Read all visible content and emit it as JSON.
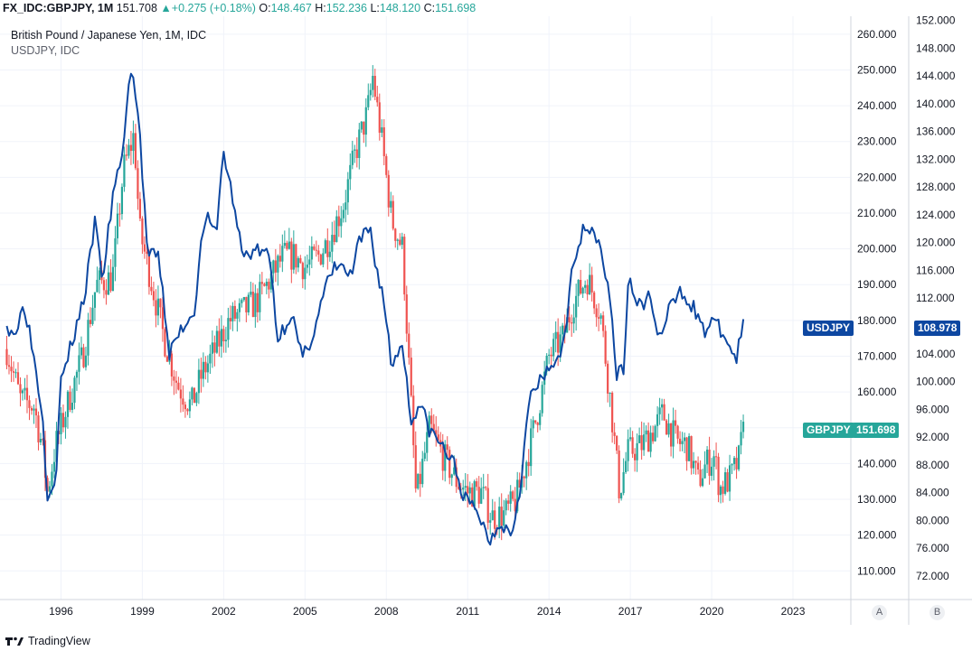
{
  "header": {
    "symbol": "FX_IDC:GBPJPY, 1M",
    "last": "151.708",
    "change": "+0.275 (+0.18%)",
    "o_label": "O:",
    "o_val": "148.467",
    "h_label": "H:",
    "h_val": "152.236",
    "l_label": "L:",
    "l_val": "148.120",
    "c_label": "C:",
    "c_val": "151.698"
  },
  "legend": {
    "main": "British Pound / Japanese Yen, 1M, IDC",
    "overlay": "USDJPY, IDC"
  },
  "tags": {
    "usdjpy_name": "USDJPY",
    "usdjpy_value": "108.978",
    "gbpjpy_name": "GBPJPY",
    "gbpjpy_value": "151.698"
  },
  "scale_buttons": {
    "a": "A",
    "b": "B"
  },
  "brand": {
    "name": "TradingView"
  },
  "colors": {
    "up": "#26a69a",
    "down": "#ef5350",
    "line": "#0d47a1",
    "usdjpy_tag": "#0d47a1",
    "gbpjpy_tag": "#26a69a",
    "grid": "#f0f3fa"
  },
  "chart_data": {
    "type": "candlestick",
    "title": "British Pound / Japanese Yen, 1M, IDC",
    "x_ticks": [
      "1996",
      "1999",
      "2002",
      "2005",
      "2008",
      "2011",
      "2014",
      "2017",
      "2020",
      "2023"
    ],
    "x_tick_years": [
      1996,
      1999,
      2002,
      2005,
      2008,
      2011,
      2014,
      2017,
      2020,
      2023
    ],
    "x_range": [
      1993.75,
      2025.1
    ],
    "left_axis": {
      "series": "GBPJPY",
      "range": [
        102,
        265
      ],
      "ticks": [
        "110.000",
        "120.000",
        "130.000",
        "140.000",
        "150.000",
        "160.000",
        "170.000",
        "180.000",
        "190.000",
        "200.000",
        "210.000",
        "220.000",
        "230.000",
        "240.000",
        "250.000",
        "260.000"
      ],
      "tick_values": [
        110,
        120,
        130,
        140,
        150,
        160,
        170,
        180,
        190,
        200,
        210,
        220,
        230,
        240,
        250,
        260
      ]
    },
    "right_axis": {
      "series": "USDJPY",
      "range": [
        68.6,
        152.6
      ],
      "ticks": [
        "72.000",
        "76.000",
        "80.000",
        "84.000",
        "88.000",
        "92.000",
        "96.000",
        "100.000",
        "104.000",
        "108.000",
        "112.000",
        "116.000",
        "120.000",
        "124.000",
        "128.000",
        "132.000",
        "136.000",
        "140.000",
        "144.000",
        "148.000",
        "152.000"
      ],
      "tick_values": [
        72,
        76,
        80,
        84,
        88,
        92,
        96,
        100,
        104,
        108,
        112,
        116,
        120,
        124,
        128,
        132,
        136,
        140,
        144,
        148,
        152
      ]
    },
    "series": [
      {
        "name": "GBPJPY",
        "type": "candlestick",
        "axis": "left",
        "key_points": [
          [
            1994.0,
            172
          ],
          [
            1994.5,
            158
          ],
          [
            1995.0,
            156
          ],
          [
            1995.3,
            145
          ],
          [
            1995.5,
            132
          ],
          [
            1995.8,
            145
          ],
          [
            1996.3,
            158
          ],
          [
            1996.8,
            170
          ],
          [
            1997.3,
            190
          ],
          [
            1997.9,
            192
          ],
          [
            1998.3,
            222
          ],
          [
            1998.7,
            232
          ],
          [
            1998.9,
            205
          ],
          [
            1999.3,
            192
          ],
          [
            1999.8,
            175
          ],
          [
            2000.3,
            162
          ],
          [
            2000.8,
            156
          ],
          [
            2001.2,
            165
          ],
          [
            2001.7,
            172
          ],
          [
            2002.2,
            180
          ],
          [
            2002.6,
            182
          ],
          [
            2003.2,
            185
          ],
          [
            2003.6,
            190
          ],
          [
            2004.2,
            198
          ],
          [
            2004.6,
            198
          ],
          [
            2005.0,
            195
          ],
          [
            2005.5,
            198
          ],
          [
            2005.9,
            203
          ],
          [
            2006.4,
            212
          ],
          [
            2006.9,
            228
          ],
          [
            2007.3,
            238
          ],
          [
            2007.5,
            248
          ],
          [
            2007.8,
            232
          ],
          [
            2008.2,
            208
          ],
          [
            2008.6,
            200
          ],
          [
            2008.9,
            158
          ],
          [
            2009.1,
            130
          ],
          [
            2009.6,
            150
          ],
          [
            2010.1,
            142
          ],
          [
            2010.6,
            135
          ],
          [
            2011.0,
            132
          ],
          [
            2011.5,
            132
          ],
          [
            2011.9,
            125
          ],
          [
            2012.4,
            126
          ],
          [
            2012.8,
            130
          ],
          [
            2013.2,
            142
          ],
          [
            2013.6,
            155
          ],
          [
            2014.0,
            170
          ],
          [
            2014.5,
            175
          ],
          [
            2014.9,
            185
          ],
          [
            2015.4,
            192
          ],
          [
            2015.9,
            182
          ],
          [
            2016.3,
            155
          ],
          [
            2016.6,
            132
          ],
          [
            2016.9,
            143
          ],
          [
            2017.4,
            145
          ],
          [
            2017.9,
            150
          ],
          [
            2018.2,
            154
          ],
          [
            2018.7,
            146
          ],
          [
            2019.1,
            145
          ],
          [
            2019.5,
            135
          ],
          [
            2019.8,
            140
          ],
          [
            2020.1,
            142
          ],
          [
            2020.3,
            133
          ],
          [
            2020.7,
            136
          ],
          [
            2021.0,
            141
          ],
          [
            2021.2,
            152
          ]
        ]
      },
      {
        "name": "USDJPY",
        "type": "line",
        "axis": "right",
        "key_points": [
          [
            1994.0,
            108
          ],
          [
            1994.4,
            107
          ],
          [
            1994.6,
            112
          ],
          [
            1994.9,
            106
          ],
          [
            1995.3,
            96
          ],
          [
            1995.5,
            84
          ],
          [
            1995.8,
            86
          ],
          [
            1996.0,
            100
          ],
          [
            1996.5,
            107
          ],
          [
            1996.9,
            113
          ],
          [
            1997.3,
            124
          ],
          [
            1997.5,
            114
          ],
          [
            1997.9,
            126
          ],
          [
            1998.3,
            134
          ],
          [
            1998.6,
            146
          ],
          [
            1998.9,
            136
          ],
          [
            1999.2,
            118
          ],
          [
            1999.6,
            118
          ],
          [
            2000.0,
            104
          ],
          [
            2000.5,
            108
          ],
          [
            2000.9,
            110
          ],
          [
            2001.3,
            124
          ],
          [
            2001.7,
            121
          ],
          [
            2002.0,
            133
          ],
          [
            2002.3,
            127
          ],
          [
            2002.7,
            118
          ],
          [
            2003.2,
            119
          ],
          [
            2003.7,
            118
          ],
          [
            2004.0,
            106
          ],
          [
            2004.5,
            110
          ],
          [
            2004.9,
            103
          ],
          [
            2005.3,
            107
          ],
          [
            2005.8,
            114
          ],
          [
            2006.2,
            117
          ],
          [
            2006.7,
            115
          ],
          [
            2007.0,
            120
          ],
          [
            2007.4,
            122
          ],
          [
            2007.6,
            117
          ],
          [
            2007.9,
            112
          ],
          [
            2008.2,
            102
          ],
          [
            2008.6,
            106
          ],
          [
            2008.9,
            94
          ],
          [
            2009.2,
            97
          ],
          [
            2009.6,
            93
          ],
          [
            2010.0,
            91
          ],
          [
            2010.5,
            88
          ],
          [
            2010.9,
            83
          ],
          [
            2011.4,
            81
          ],
          [
            2011.8,
            77
          ],
          [
            2012.2,
            80
          ],
          [
            2012.6,
            78
          ],
          [
            2012.9,
            84
          ],
          [
            2013.3,
            98
          ],
          [
            2013.7,
            100
          ],
          [
            2014.1,
            102
          ],
          [
            2014.6,
            106
          ],
          [
            2014.9,
            118
          ],
          [
            2015.4,
            123
          ],
          [
            2015.9,
            120
          ],
          [
            2016.3,
            110
          ],
          [
            2016.5,
            101
          ],
          [
            2016.8,
            102
          ],
          [
            2016.9,
            115
          ],
          [
            2017.3,
            111
          ],
          [
            2017.7,
            112
          ],
          [
            2018.1,
            106
          ],
          [
            2018.5,
            111
          ],
          [
            2018.9,
            113
          ],
          [
            2019.3,
            111
          ],
          [
            2019.7,
            107
          ],
          [
            2020.0,
            109
          ],
          [
            2020.4,
            107
          ],
          [
            2020.9,
            103
          ],
          [
            2021.2,
            109
          ]
        ]
      }
    ]
  }
}
